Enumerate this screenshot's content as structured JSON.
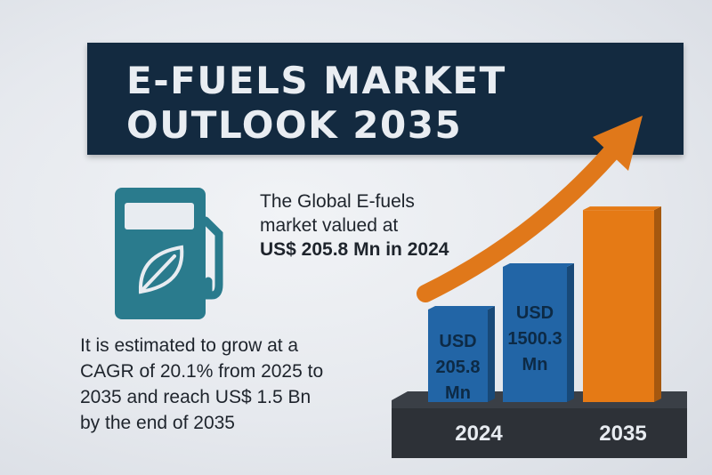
{
  "title": {
    "line1": "E-FUELS MARKET",
    "line2": "OUTLOOK 2035"
  },
  "icon": "fuel-pump-leaf-icon",
  "intro": {
    "line1": "The Global E-fuels",
    "line2": "market valued at",
    "line3": "US$ 205.8 Mn in 2024"
  },
  "forecast": {
    "line1": "It is estimated to grow at a",
    "line2": "CAGR of 20.1% from 2025 to",
    "line3": "2035 and reach US$ 1.5  Bn",
    "line4": "by the end of 2035"
  },
  "colors": {
    "banner": "#132a40",
    "pump": "#2a7b8d",
    "bar_blue": "#2265a6",
    "bar_orange": "#e57a15",
    "arrow": "#e0781a",
    "base": "#2d3137"
  },
  "chart_data": {
    "type": "bar",
    "bars": [
      {
        "value": 205.8,
        "label_lines": [
          "USD",
          "205.8",
          "Mn"
        ],
        "color": "#2265a6"
      },
      {
        "value": 1500.3,
        "label_lines": [
          "USD",
          "1500.3",
          "Mn"
        ],
        "color": "#2265a6"
      },
      {
        "value": 1500.3,
        "label_lines": [],
        "color": "#e57a15"
      }
    ],
    "tick_labels": [
      "2024",
      "2035"
    ],
    "trend_arrow": "rising",
    "unit": "USD Mn"
  }
}
